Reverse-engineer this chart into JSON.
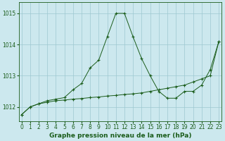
{
  "title": "Graphe pression niveau de la mer (hPa)",
  "xlabel_ticks": [
    0,
    1,
    2,
    3,
    4,
    5,
    6,
    7,
    8,
    9,
    10,
    11,
    12,
    13,
    14,
    15,
    16,
    17,
    18,
    19,
    20,
    21,
    22,
    23
  ],
  "ylim": [
    1011.55,
    1015.35
  ],
  "yticks": [
    1012,
    1013,
    1014,
    1015
  ],
  "xlim": [
    -0.3,
    23.3
  ],
  "bg_color": "#cce8ee",
  "grid_color": "#9ec8d0",
  "line_color": "#1a5c1a",
  "line1_x": [
    0,
    1,
    2,
    3,
    4,
    5,
    6,
    7,
    8,
    9,
    10,
    11,
    12,
    13,
    14,
    15,
    16,
    17,
    18,
    19,
    20,
    21,
    22,
    23
  ],
  "line1_y": [
    1011.75,
    1012.0,
    1012.1,
    1012.2,
    1012.25,
    1012.3,
    1012.55,
    1012.75,
    1013.25,
    1013.5,
    1014.25,
    1015.0,
    1015.0,
    1014.25,
    1013.55,
    1013.0,
    1012.5,
    1012.28,
    1012.28,
    1012.5,
    1012.5,
    1012.7,
    1013.2,
    1014.1
  ],
  "line2_x": [
    0,
    1,
    2,
    3,
    4,
    5,
    6,
    7,
    8,
    9,
    10,
    11,
    12,
    13,
    14,
    15,
    16,
    17,
    18,
    19,
    20,
    21,
    22,
    23
  ],
  "line2_y": [
    1011.75,
    1012.0,
    1012.1,
    1012.15,
    1012.2,
    1012.22,
    1012.25,
    1012.27,
    1012.3,
    1012.32,
    1012.35,
    1012.37,
    1012.4,
    1012.42,
    1012.45,
    1012.5,
    1012.55,
    1012.6,
    1012.65,
    1012.7,
    1012.8,
    1012.9,
    1013.0,
    1014.1
  ],
  "title_color": "#1a5c1a",
  "title_fontsize": 6.5,
  "tick_fontsize": 5.5
}
